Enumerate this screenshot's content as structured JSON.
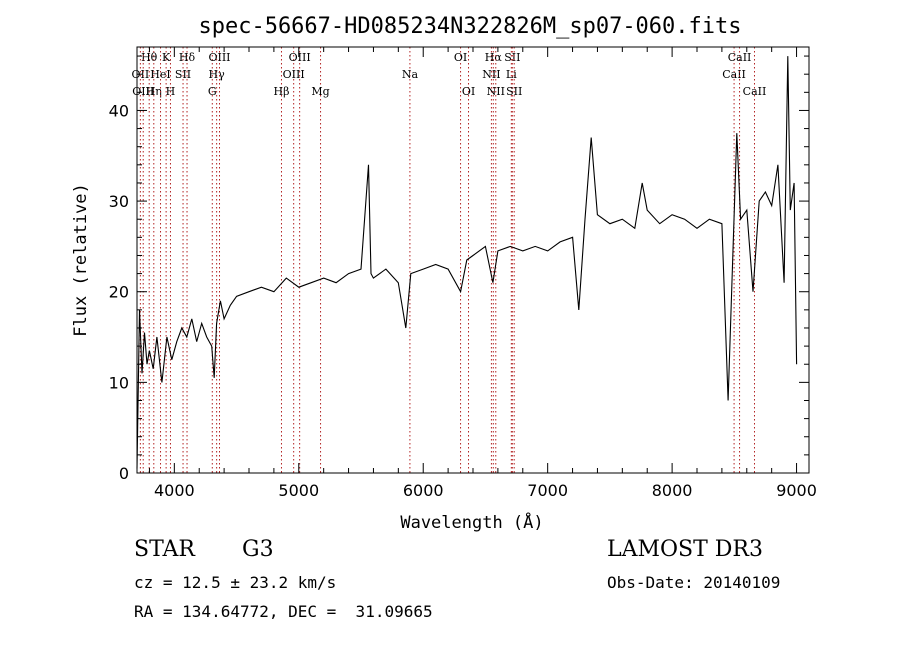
{
  "chart_data": {
    "type": "line",
    "title": "spec-56667-HD085234N322826M_sp07-060.fits",
    "xlabel": "Wavelength (Å)",
    "ylabel": "Flux (relative)",
    "xlim": [
      3700,
      9100
    ],
    "ylim": [
      0,
      47
    ],
    "xticks": [
      4000,
      5000,
      6000,
      7000,
      8000,
      9000
    ],
    "yticks": [
      0,
      10,
      20,
      30,
      40
    ],
    "grid": false,
    "series": [
      {
        "name": "flux",
        "x": [
          3700,
          3720,
          3740,
          3760,
          3780,
          3800,
          3830,
          3860,
          3900,
          3940,
          3980,
          4020,
          4060,
          4100,
          4140,
          4180,
          4220,
          4260,
          4300,
          4320,
          4340,
          4370,
          4400,
          4450,
          4500,
          4600,
          4700,
          4800,
          4900,
          5000,
          5100,
          5200,
          5300,
          5400,
          5500,
          5560,
          5580,
          5600,
          5700,
          5800,
          5860,
          5900,
          6000,
          6100,
          6200,
          6300,
          6350,
          6400,
          6500,
          6560,
          6600,
          6700,
          6800,
          6900,
          7000,
          7100,
          7200,
          7250,
          7300,
          7350,
          7400,
          7500,
          7600,
          7700,
          7760,
          7800,
          7900,
          8000,
          8100,
          8200,
          8300,
          8400,
          8450,
          8500,
          8520,
          8550,
          8600,
          8650,
          8700,
          8750,
          8800,
          8850,
          8900,
          8930,
          8950,
          8980,
          9000
        ],
        "values": [
          0.5,
          18.0,
          11.0,
          15.5,
          12.0,
          13.5,
          11.5,
          15.0,
          10.0,
          15.0,
          12.5,
          14.5,
          16.0,
          15.0,
          17.0,
          14.5,
          16.5,
          15.0,
          14.0,
          10.5,
          16.5,
          19.0,
          17.0,
          18.5,
          19.5,
          20.0,
          20.5,
          20.0,
          21.5,
          20.5,
          21.0,
          21.5,
          21.0,
          22.0,
          22.5,
          34.0,
          22.0,
          21.5,
          22.5,
          21.0,
          16.0,
          22.0,
          22.5,
          23.0,
          22.5,
          20.0,
          23.5,
          24.0,
          25.0,
          21.0,
          24.5,
          25.0,
          24.5,
          25.0,
          24.5,
          25.5,
          26.0,
          18.0,
          28.0,
          37.0,
          28.5,
          27.5,
          28.0,
          27.0,
          32.0,
          29.0,
          27.5,
          28.5,
          28.0,
          27.0,
          28.0,
          27.5,
          8.0,
          29.0,
          37.5,
          28.0,
          29.0,
          20.0,
          30.0,
          31.0,
          29.5,
          34.0,
          21.0,
          46.0,
          29.0,
          32.0,
          12.0
        ]
      }
    ],
    "lines": [
      {
        "name": "Hθ",
        "x": 3798,
        "row": 1
      },
      {
        "name": "OII",
        "x": 3727,
        "row": 2
      },
      {
        "name": "OIII",
        "x": 3750,
        "row": 3
      },
      {
        "name": "Hη",
        "x": 3835,
        "row": 3
      },
      {
        "name": "HeI",
        "x": 3889,
        "row": 2
      },
      {
        "name": "K",
        "x": 3934,
        "row": 1
      },
      {
        "name": "H",
        "x": 3969,
        "row": 3
      },
      {
        "name": "SII",
        "x": 4070,
        "row": 2
      },
      {
        "name": "Hδ",
        "x": 4102,
        "row": 1
      },
      {
        "name": "G",
        "x": 4305,
        "row": 3
      },
      {
        "name": "Hγ",
        "x": 4340,
        "row": 2
      },
      {
        "name": "OIII",
        "x": 4363,
        "row": 1
      },
      {
        "name": "Hβ",
        "x": 4861,
        "row": 3
      },
      {
        "name": "OIII",
        "x": 4959,
        "row": 2
      },
      {
        "name": "OIII",
        "x": 5007,
        "row": 1
      },
      {
        "name": "Mg",
        "x": 5175,
        "row": 3
      },
      {
        "name": "Na",
        "x": 5893,
        "row": 2
      },
      {
        "name": "OI",
        "x": 6300,
        "row": 1
      },
      {
        "name": "OI",
        "x": 6364,
        "row": 3
      },
      {
        "name": "NII",
        "x": 6548,
        "row": 2
      },
      {
        "name": "Hα",
        "x": 6563,
        "row": 1
      },
      {
        "name": "NII",
        "x": 6583,
        "row": 3
      },
      {
        "name": "Li",
        "x": 6708,
        "row": 2
      },
      {
        "name": "SII",
        "x": 6716,
        "row": 1
      },
      {
        "name": "SII",
        "x": 6731,
        "row": 3
      },
      {
        "name": "CaII",
        "x": 8498,
        "row": 2
      },
      {
        "name": "CaII",
        "x": 8542,
        "row": 1
      },
      {
        "name": "CaII",
        "x": 8662,
        "row": 3
      }
    ]
  },
  "info": {
    "class_label": "STAR",
    "subclass": "G3",
    "cz": "cz = 12.5 ± 23.2 km/s",
    "coords": "RA = 134.64772, DEC =  31.09665",
    "survey": "LAMOST DR3",
    "obs_date": "Obs-Date: 20140109"
  }
}
